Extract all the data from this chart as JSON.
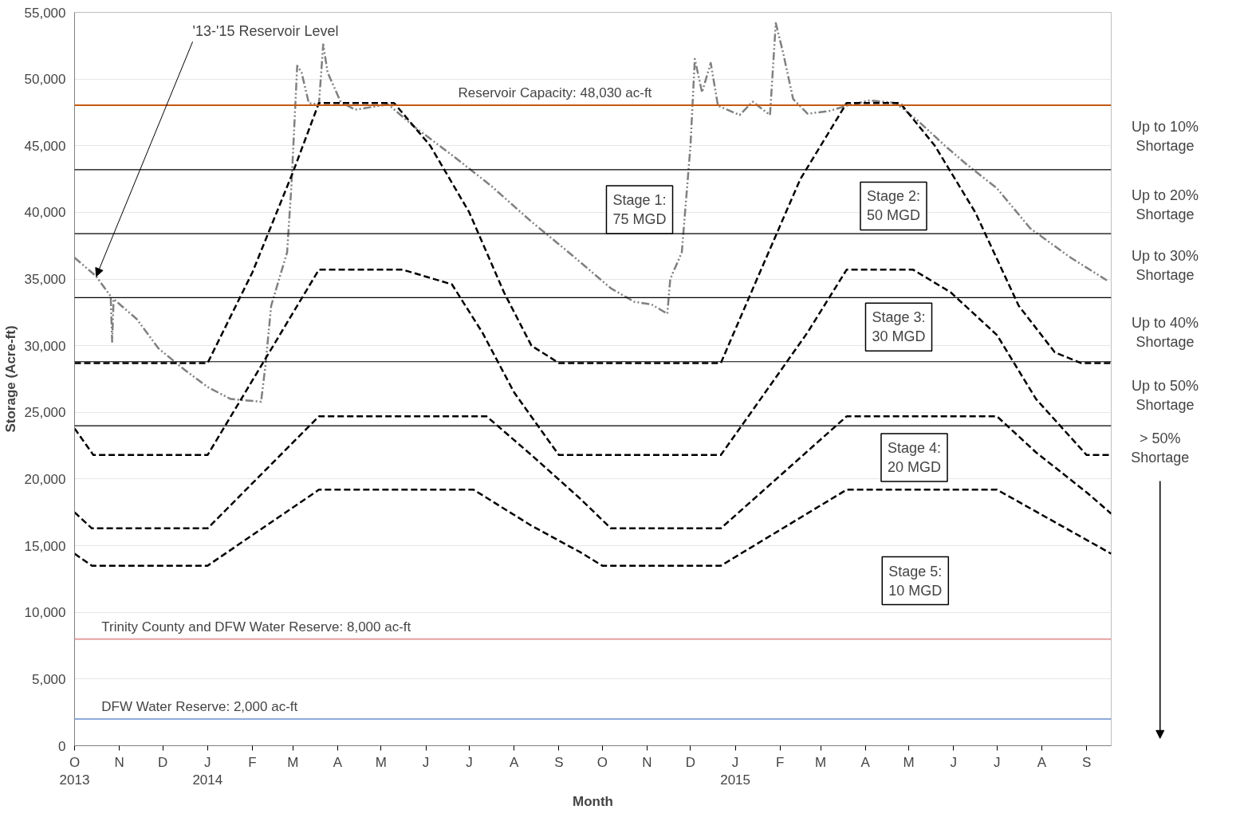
{
  "chart_data": {
    "type": "line",
    "xlabel": "Month",
    "ylabel": "Storage (Acre-ft)",
    "xlim": [
      "2013-10-01",
      "2015-09-18"
    ],
    "xticks": [
      {
        "value": "2013-10-01",
        "label": "O\n2013"
      },
      {
        "value": "2013-11-01",
        "label": "N"
      },
      {
        "value": "2013-12-01",
        "label": "D"
      },
      {
        "value": "2014-01-01",
        "label": "J\n2014"
      },
      {
        "value": "2014-02-01",
        "label": "F"
      },
      {
        "value": "2014-03-01",
        "label": "M"
      },
      {
        "value": "2014-04-01",
        "label": "A"
      },
      {
        "value": "2014-05-01",
        "label": "M"
      },
      {
        "value": "2014-06-01",
        "label": "J"
      },
      {
        "value": "2014-07-01",
        "label": "J"
      },
      {
        "value": "2014-08-01",
        "label": "A"
      },
      {
        "value": "2014-09-01",
        "label": "S"
      },
      {
        "value": "2014-10-01",
        "label": "O"
      },
      {
        "value": "2014-11-01",
        "label": "N"
      },
      {
        "value": "2014-12-01",
        "label": "D"
      },
      {
        "value": "2015-01-01",
        "label": "J\n2015"
      },
      {
        "value": "2015-02-01",
        "label": "F"
      },
      {
        "value": "2015-03-01",
        "label": "M"
      },
      {
        "value": "2015-04-01",
        "label": "A"
      },
      {
        "value": "2015-05-01",
        "label": "M"
      },
      {
        "value": "2015-06-01",
        "label": "J"
      },
      {
        "value": "2015-07-01",
        "label": "J"
      },
      {
        "value": "2015-08-01",
        "label": "A"
      },
      {
        "value": "2015-09-01",
        "label": "S"
      }
    ],
    "ylim": [
      0,
      55000
    ],
    "yticks": [
      0,
      {
        "value": 5000,
        "label": "5,000"
      },
      {
        "value": 10000,
        "label": "10,000"
      },
      {
        "value": 15000,
        "label": "15,000"
      },
      {
        "value": 20000,
        "label": "20,000"
      },
      {
        "value": 25000,
        "label": "25,000"
      },
      {
        "value": 30000,
        "label": "30,000"
      },
      {
        "value": 35000,
        "label": "35,000"
      },
      {
        "value": 40000,
        "label": "40,000"
      },
      {
        "value": 45000,
        "label": "45,000"
      },
      {
        "value": 50000,
        "label": "50,000"
      },
      {
        "value": 55000,
        "label": "55,000"
      }
    ],
    "grid": "y",
    "line_style": "dashed",
    "marker": "none",
    "series": [
      {
        "name": "'13-'15 Reservoir Level",
        "color": "#808080",
        "line_style": "dotted",
        "x": [
          "2013-10-01",
          "2013-10-16",
          "2013-10-26",
          "2013-10-27",
          "2013-10-28",
          "2013-11-13",
          "2013-11-28",
          "2013-12-16",
          "2014-01-01",
          "2014-01-17",
          "2014-02-07",
          "2014-02-10",
          "2014-02-14",
          "2014-02-25",
          "2014-02-28",
          "2014-03-04",
          "2014-03-07",
          "2014-03-12",
          "2014-03-19",
          "2014-03-22",
          "2014-03-25",
          "2014-04-03",
          "2014-04-13",
          "2014-05-06",
          "2014-05-23",
          "2014-06-19",
          "2014-07-16",
          "2014-08-13",
          "2014-09-10",
          "2014-10-07",
          "2014-10-23",
          "2014-11-04",
          "2014-11-15",
          "2014-11-17",
          "2014-11-25",
          "2014-12-01",
          "2014-12-04",
          "2014-12-09",
          "2014-12-15",
          "2014-12-20",
          "2015-01-04",
          "2015-01-13",
          "2015-01-25",
          "2015-01-29",
          "2015-02-03",
          "2015-02-10",
          "2015-02-20",
          "2015-03-07",
          "2015-03-19",
          "2015-04-04",
          "2015-04-22",
          "2015-05-07",
          "2015-05-26",
          "2015-06-10",
          "2015-07-01",
          "2015-07-24",
          "2015-08-21",
          "2015-09-15"
        ],
        "values": [
          36600,
          35200,
          33700,
          30300,
          33500,
          32000,
          29800,
          28200,
          26900,
          26000,
          25800,
          28500,
          33000,
          37000,
          42000,
          51000,
          50500,
          48200,
          48100,
          52600,
          50500,
          48300,
          47700,
          48100,
          46500,
          44300,
          42000,
          39300,
          36800,
          34300,
          33300,
          33100,
          32400,
          35000,
          37000,
          45000,
          51500,
          49000,
          51200,
          48000,
          47300,
          48300,
          47300,
          54200,
          52000,
          48500,
          47400,
          47600,
          48000,
          48400,
          48200,
          46900,
          45000,
          43600,
          41800,
          38800,
          36600,
          34900
        ]
      },
      {
        "color": "#000000",
        "x": [
          "2013-10-01",
          "2014-01-01",
          "2014-02-01",
          "2014-03-01",
          "2014-03-19",
          "2014-05-10",
          "2014-06-04",
          "2014-07-01",
          "2014-07-25",
          "2014-08-13",
          "2014-09-01",
          "2014-12-22",
          "2015-01-16",
          "2015-02-15",
          "2015-03-19",
          "2015-04-25",
          "2015-05-19",
          "2015-06-16",
          "2015-07-16",
          "2015-08-10",
          "2015-08-28",
          "2015-09-18"
        ],
        "values": [
          28700,
          28700,
          35500,
          43000,
          48200,
          48200,
          45000,
          40000,
          34000,
          30000,
          28700,
          28700,
          35000,
          42500,
          48200,
          48200,
          45000,
          40000,
          33000,
          29500,
          28700,
          28700
        ]
      },
      {
        "color": "#000000",
        "x": [
          "2013-10-01",
          "2013-10-14",
          "2014-01-01",
          "2014-03-19",
          "2014-05-16",
          "2014-06-19",
          "2014-07-10",
          "2014-08-01",
          "2014-08-24",
          "2014-09-01",
          "2014-12-22",
          "2015-01-25",
          "2015-02-20",
          "2015-03-19",
          "2015-05-04",
          "2015-05-30",
          "2015-07-01",
          "2015-07-28",
          "2015-09-01",
          "2015-09-18"
        ],
        "values": [
          23800,
          21800,
          21800,
          35700,
          35700,
          34600,
          31000,
          26500,
          23000,
          21800,
          21800,
          27000,
          31000,
          35700,
          35700,
          34000,
          30800,
          26000,
          21800,
          21800
        ]
      },
      {
        "color": "#000000",
        "x": [
          "2013-10-01",
          "2013-10-13",
          "2014-01-01",
          "2014-03-19",
          "2014-07-13",
          "2014-08-13",
          "2014-09-16",
          "2014-10-07",
          "2014-12-22",
          "2015-03-19",
          "2015-07-01",
          "2015-07-28",
          "2015-09-01",
          "2015-09-18"
        ],
        "values": [
          17500,
          16300,
          16300,
          24700,
          24700,
          21800,
          18500,
          16300,
          16300,
          24700,
          24700,
          22000,
          19000,
          17400
        ]
      },
      {
        "color": "#000000",
        "x": [
          "2013-10-01",
          "2013-10-13",
          "2014-01-01",
          "2014-03-19",
          "2014-07-04",
          "2014-08-13",
          "2014-09-16",
          "2014-10-01",
          "2014-12-22",
          "2015-03-19",
          "2015-07-01",
          "2015-09-18"
        ],
        "values": [
          14400,
          13500,
          13500,
          19200,
          19200,
          16500,
          14500,
          13500,
          13500,
          19200,
          19200,
          14400
        ]
      }
    ],
    "ref_lines": [
      {
        "axis": "y",
        "value": 48030,
        "label": "Reservoir Capacity: 48,030 ac-ft",
        "color": "#c55a11"
      },
      {
        "axis": "y",
        "value": 43200,
        "color": "#000000"
      },
      {
        "axis": "y",
        "value": 38400,
        "color": "#000000"
      },
      {
        "axis": "y",
        "value": 33600,
        "color": "#000000"
      },
      {
        "axis": "y",
        "value": 28800,
        "color": "#000000"
      },
      {
        "axis": "y",
        "value": 24000,
        "color": "#000000"
      },
      {
        "axis": "y",
        "value": 8000,
        "label": "Trinity County and DFW Water Reserve: 8,000 ac-ft",
        "color": "#e6a0a0"
      },
      {
        "axis": "y",
        "value": 2000,
        "label": "DFW Water Reserve: 2,000 ac-ft",
        "color": "#8eaadb"
      }
    ],
    "annotations": [
      "Stage 1:\n75 MGD",
      "Stage 2:\n50 MGD",
      "Stage 3:\n30 MGD",
      "Stage 4:\n20 MGD",
      "Stage 5:\n10 MGD",
      "Up to 10%\nShortage",
      "Up to 20%\nShortage",
      "Up to 30%\nShortage",
      "Up to 40%\nShortage",
      "Up to 50%\nShortage",
      "> 50%\nShortage"
    ]
  }
}
